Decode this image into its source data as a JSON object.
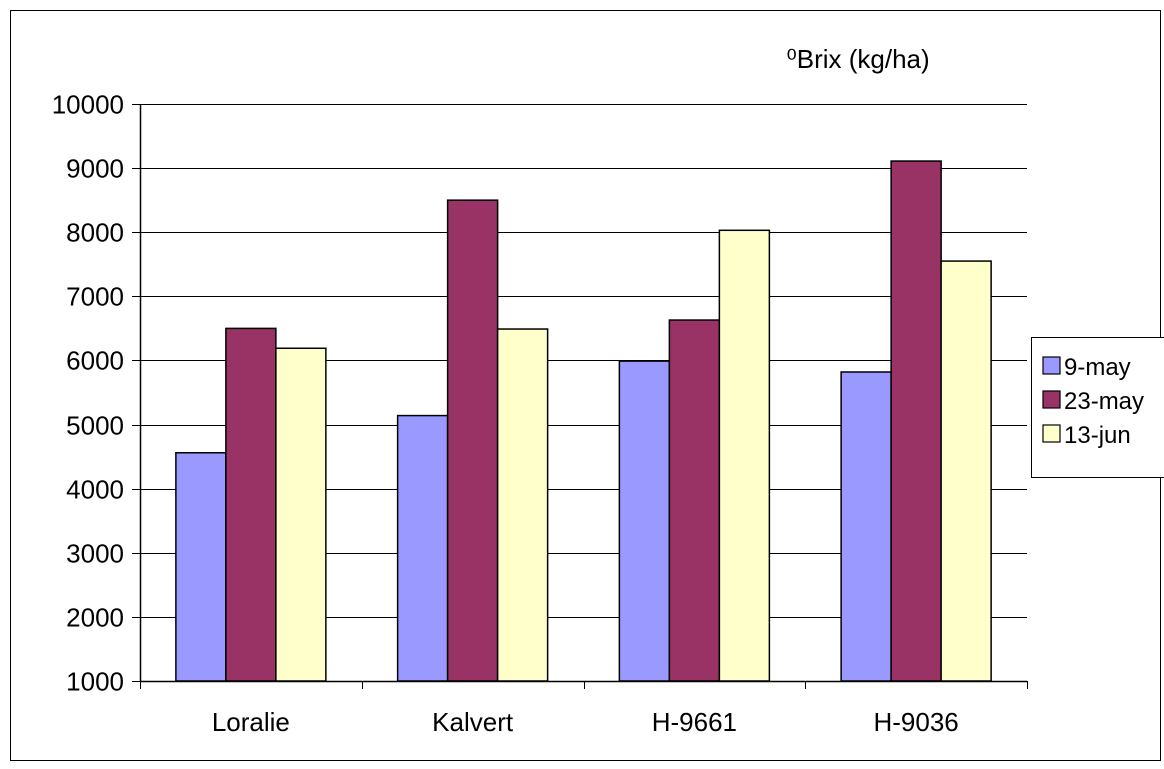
{
  "chart_data": {
    "type": "bar",
    "title": "⁰Brix (kg/ha)",
    "xlabel": "",
    "ylabel": "",
    "categories": [
      "Loralie",
      "Kalvert",
      "H-9661",
      "H-9036"
    ],
    "series": [
      {
        "name": "9-may",
        "color": "#9999FF",
        "values": [
          4560,
          5140,
          5990,
          5820
        ]
      },
      {
        "name": "23-may",
        "color": "#993366",
        "values": [
          6500,
          8500,
          6630,
          9110
        ]
      },
      {
        "name": "13-jun",
        "color": "#FFFFCC",
        "values": [
          6190,
          6490,
          8030,
          7550
        ]
      }
    ],
    "ylim": [
      1000,
      10000
    ],
    "yticks": [
      "1000",
      "2000",
      "3000",
      "4000",
      "5000",
      "6000",
      "7000",
      "8000",
      "9000",
      "10000"
    ],
    "grid": true,
    "legend_position": "right"
  }
}
